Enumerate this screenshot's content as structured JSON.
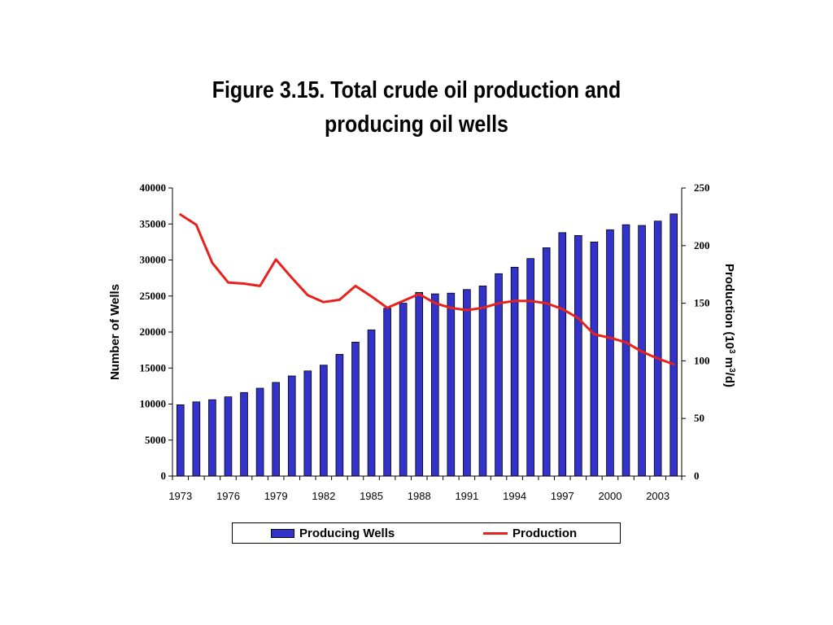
{
  "title": [
    "Figure 3.15. Total crude oil production and",
    "producing oil wells"
  ],
  "chart_data": {
    "type": "bar",
    "title": "Figure 3.15. Total crude oil production and producing oil wells",
    "ylabel": "Number of Wells",
    "y2label": "Production (10³ m³/d)",
    "ylim": [
      0,
      40000
    ],
    "y2lim": [
      0,
      250
    ],
    "yticks": [
      "0",
      "5000",
      "10000",
      "15000",
      "20000",
      "25000",
      "30000",
      "35000",
      "40000"
    ],
    "y2ticks": [
      "0",
      "50",
      "100",
      "150",
      "200",
      "250"
    ],
    "xtick_labels": [
      "1973",
      "1976",
      "1979",
      "1982",
      "1985",
      "1988",
      "1991",
      "1994",
      "1997",
      "2000",
      "2003"
    ],
    "categories": [
      1973,
      1974,
      1975,
      1976,
      1977,
      1978,
      1979,
      1980,
      1981,
      1982,
      1983,
      1984,
      1985,
      1986,
      1987,
      1988,
      1989,
      1990,
      1991,
      1992,
      1993,
      1994,
      1995,
      1996,
      1997,
      1998,
      1999,
      2000,
      2001,
      2002,
      2003,
      2004
    ],
    "series": [
      {
        "name": "Producing Wells",
        "type": "bar",
        "axis": "left",
        "color": "#3333cc",
        "values": [
          9900,
          10300,
          10600,
          11000,
          11600,
          12200,
          13000,
          13900,
          14600,
          15400,
          16900,
          18600,
          20300,
          23300,
          24000,
          25500,
          25300,
          25400,
          25900,
          26400,
          28100,
          29000,
          30200,
          31700,
          33800,
          33400,
          32500,
          34200,
          34900,
          34800,
          35400,
          36400
        ]
      },
      {
        "name": "Production",
        "type": "line",
        "axis": "right",
        "color": "#e8211d",
        "values": [
          227,
          218,
          185,
          168,
          167,
          165,
          188,
          172,
          157,
          151,
          153,
          165,
          156,
          146,
          152,
          158,
          150,
          146,
          144,
          146,
          150,
          152,
          152,
          150,
          145,
          137,
          123,
          120,
          116,
          108,
          102,
          97
        ]
      }
    ],
    "legend": {
      "position": "bottom",
      "items": [
        "Producing Wells",
        "Production"
      ]
    },
    "grid": false
  }
}
